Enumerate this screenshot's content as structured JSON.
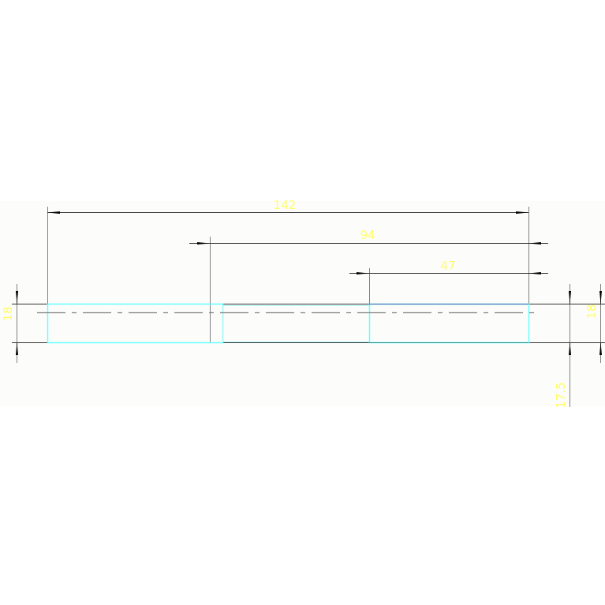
{
  "drawing": {
    "colors": {
      "background": "#fcfdfa",
      "dimension_line": "#333333",
      "extension_line": "#808080",
      "part_edge": "#66ffff",
      "dimension_text": "#ffff66",
      "center_line": "#808080"
    },
    "dimensions": {
      "overall_length": "142",
      "middle_length": "94",
      "right_length": "47",
      "left_height": "18",
      "right_height": "18",
      "offset": "17.5"
    }
  }
}
